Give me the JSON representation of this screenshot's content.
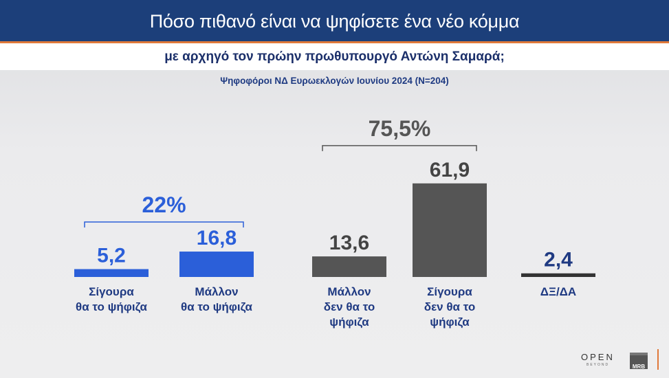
{
  "header": {
    "title": "Πόσο πιθανό είναι να ψηφίσετε ένα νέο κόμμα",
    "subtitle": "με αρχηγό τον πρώην πρωθυπουργό Αντώνη Σαμαρά;",
    "note": "Ψηφοφόροι ΝΔ Ευρωεκλογών Ιουνίου 2024 (N=204)"
  },
  "chart_data": {
    "type": "bar",
    "title": "Πόσο πιθανό είναι να ψηφίσετε ένα νέο κόμμα με αρχηγό τον πρώην πρωθυπουργό Αντώνη Σαμαρά;",
    "categories": [
      [
        "Σίγουρα",
        "θα το ψήφιζα"
      ],
      [
        "Μάλλον",
        "θα το ψήφιζα"
      ],
      [
        "Μάλλον",
        "δεν θα το",
        "ψήφιζα"
      ],
      [
        "Σίγουρα",
        "δεν θα το",
        "ψήφιζα"
      ],
      [
        "ΔΞ/ΔΑ"
      ]
    ],
    "values": [
      5.2,
      16.8,
      13.6,
      61.9,
      2.4
    ],
    "value_labels": [
      "5,2",
      "16,8",
      "13,6",
      "61,9",
      "2,4"
    ],
    "colors": [
      "#2b5fd9",
      "#2b5fd9",
      "#555555",
      "#555555",
      "#333333"
    ],
    "label_colors": [
      "#2b5fd9",
      "#2b5fd9",
      "#444444",
      "#444444",
      "#1f3a82"
    ],
    "groups": [
      {
        "label": "22%",
        "from": 0,
        "to": 1,
        "color": "#2b5fd9"
      },
      {
        "label": "75,5%",
        "from": 2,
        "to": 3,
        "color": "#555555"
      }
    ],
    "grid": false
  },
  "logos": {
    "open": "OPEN",
    "beyond": "BEYOND",
    "mrb": "MRB"
  }
}
